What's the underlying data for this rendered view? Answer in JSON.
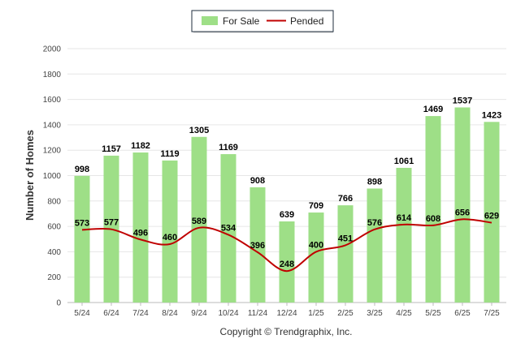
{
  "chart_data": {
    "type": "bar",
    "categories": [
      "5/24",
      "6/24",
      "7/24",
      "8/24",
      "9/24",
      "10/24",
      "11/24",
      "12/24",
      "1/25",
      "2/25",
      "3/25",
      "4/25",
      "5/25",
      "6/25",
      "7/25"
    ],
    "series": [
      {
        "name": "For Sale",
        "type": "bar",
        "color": "#9edf87",
        "values": [
          998,
          1157,
          1182,
          1119,
          1305,
          1169,
          908,
          639,
          709,
          766,
          898,
          1061,
          1469,
          1537,
          1423
        ]
      },
      {
        "name": "Pended",
        "type": "line",
        "color": "#c00000",
        "values": [
          573,
          577,
          496,
          460,
          589,
          534,
          396,
          248,
          400,
          451,
          576,
          614,
          608,
          656,
          629
        ]
      }
    ],
    "ylabel": "Number of Homes",
    "ylim": [
      0,
      2000
    ],
    "yticks": [
      0,
      200,
      400,
      600,
      800,
      1000,
      1200,
      1400,
      1600,
      1800,
      2000
    ],
    "grid": true,
    "legend_position": "top-center",
    "copyright": "Copyright © Trendgraphix, Inc."
  }
}
